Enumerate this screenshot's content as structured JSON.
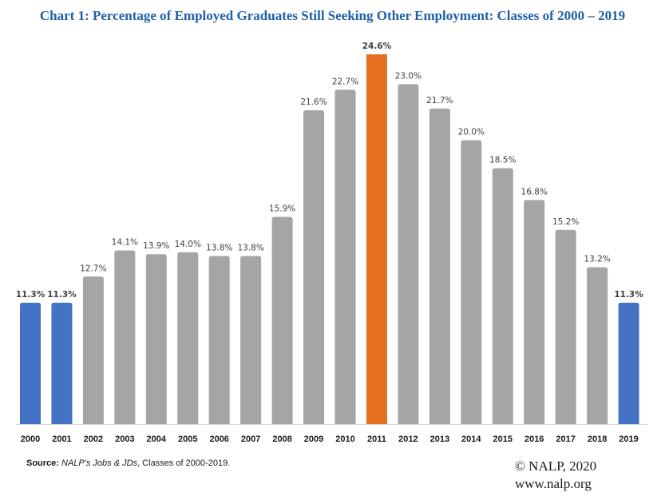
{
  "chart_data": {
    "type": "bar",
    "title": "Chart 1: Percentage of Employed Graduates Still Seeking Other Employment: Classes of 2000 – 2019",
    "xlabel": "",
    "ylabel": "",
    "categories": [
      "2000",
      "2001",
      "2002",
      "2003",
      "2004",
      "2005",
      "2006",
      "2007",
      "2008",
      "2009",
      "2010",
      "2011",
      "2012",
      "2013",
      "2014",
      "2015",
      "2016",
      "2017",
      "2018",
      "2019"
    ],
    "values": [
      11.3,
      11.3,
      12.7,
      14.1,
      13.9,
      14.0,
      13.8,
      13.8,
      15.9,
      21.6,
      22.7,
      24.6,
      23.0,
      21.7,
      20.0,
      18.5,
      16.8,
      15.2,
      13.2,
      11.3
    ],
    "labels": [
      "11.3%",
      "11.3%",
      "12.7%",
      "14.1%",
      "13.9%",
      "14.0%",
      "13.8%",
      "13.8%",
      "15.9%",
      "21.6%",
      "22.7%",
      "24.6%",
      "23.0%",
      "21.7%",
      "20.0%",
      "18.5%",
      "16.8%",
      "15.2%",
      "13.2%",
      "11.3%"
    ],
    "highlight": [
      "blue",
      "blue",
      "gray",
      "gray",
      "gray",
      "gray",
      "gray",
      "gray",
      "gray",
      "gray",
      "gray",
      "orange",
      "gray",
      "gray",
      "gray",
      "gray",
      "gray",
      "gray",
      "gray",
      "blue"
    ],
    "ylim": [
      4.8,
      24.6
    ],
    "grid": false,
    "legend": "none",
    "colors": {
      "blue": "#4472c4",
      "gray": "#a5a5a5",
      "orange": "#e46f1f"
    }
  },
  "footer": {
    "source_label": "Source:",
    "source_italic": "NALP's Jobs & JDs",
    "source_rest": ", Classes of 2000-2019.",
    "copyright": "© NALP, 2020",
    "website": "www.nalp.org"
  }
}
